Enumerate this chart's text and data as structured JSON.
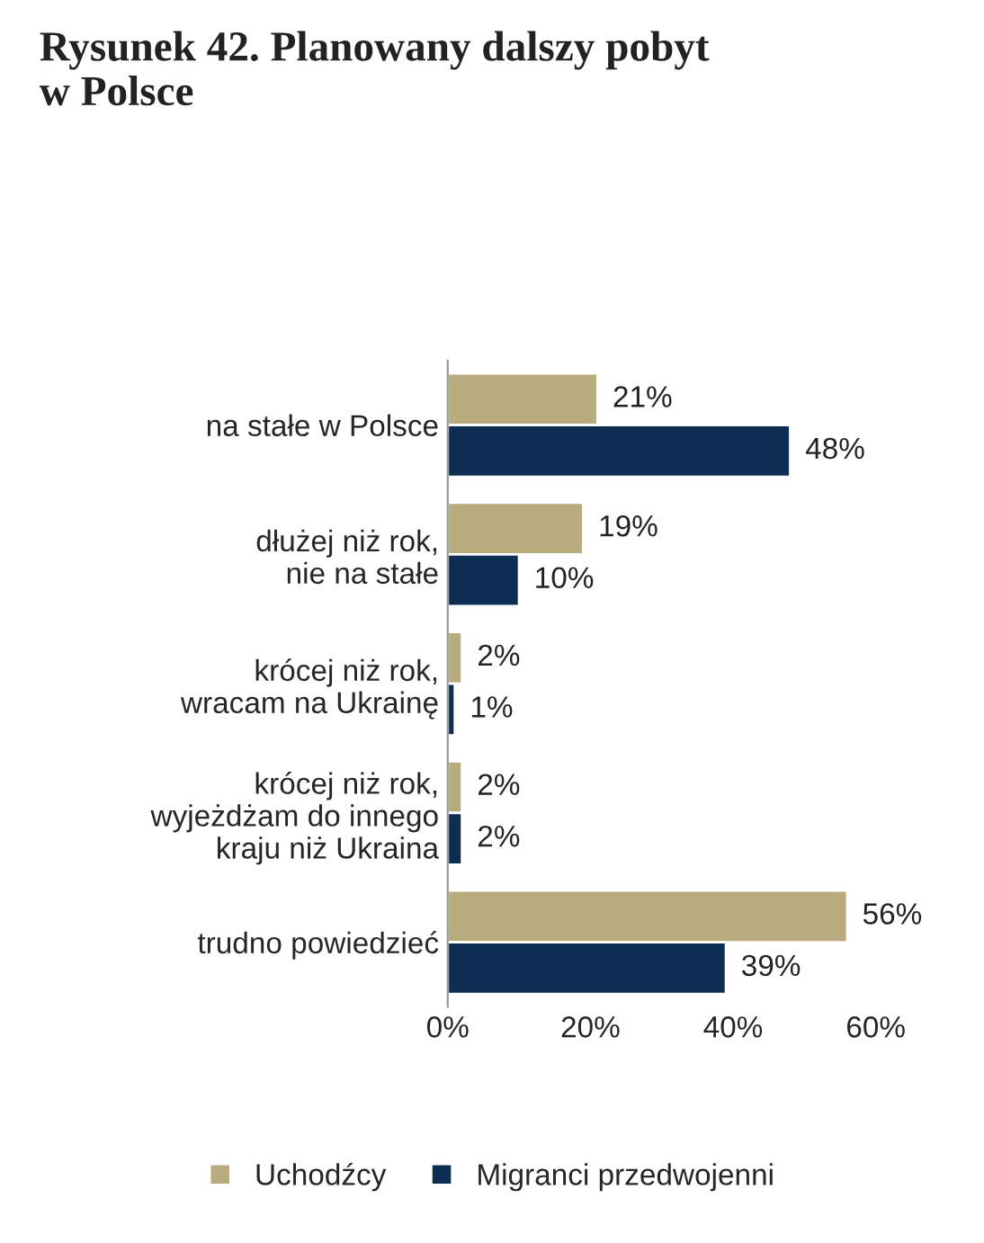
{
  "chart_data": {
    "type": "bar",
    "orientation": "horizontal",
    "title": "Rysunek 42. Planowany dalszy pobyt\nw Polsce",
    "categories": [
      "na stałe w Polsce",
      "dłużej niż rok,\nnie na stałe",
      "krócej niż rok,\nwracam na Ukrainę",
      "krócej niż rok,\nwyjeżdżam do innego\nkraju niż Ukraina",
      "trudno powiedzieć"
    ],
    "series": [
      {
        "name": "Uchodźcy",
        "color": "#b8ab7e",
        "values": [
          21,
          19,
          2,
          2,
          56
        ],
        "value_labels": [
          "21%",
          "19%",
          "2%",
          "2%",
          "56%"
        ]
      },
      {
        "name": "Migranci przedwojenni",
        "color": "#0e2d52",
        "values": [
          48,
          10,
          1,
          2,
          39
        ],
        "value_labels": [
          "48%",
          "10%",
          "1%",
          "2%",
          "39%"
        ]
      }
    ],
    "xlim": [
      0,
      60
    ],
    "xticks": [
      {
        "value": 0,
        "label": "0%"
      },
      {
        "value": 20,
        "label": "20%"
      },
      {
        "value": 40,
        "label": "40%"
      },
      {
        "value": 60,
        "label": "60%"
      }
    ],
    "grid": false,
    "legend": "bottom"
  }
}
